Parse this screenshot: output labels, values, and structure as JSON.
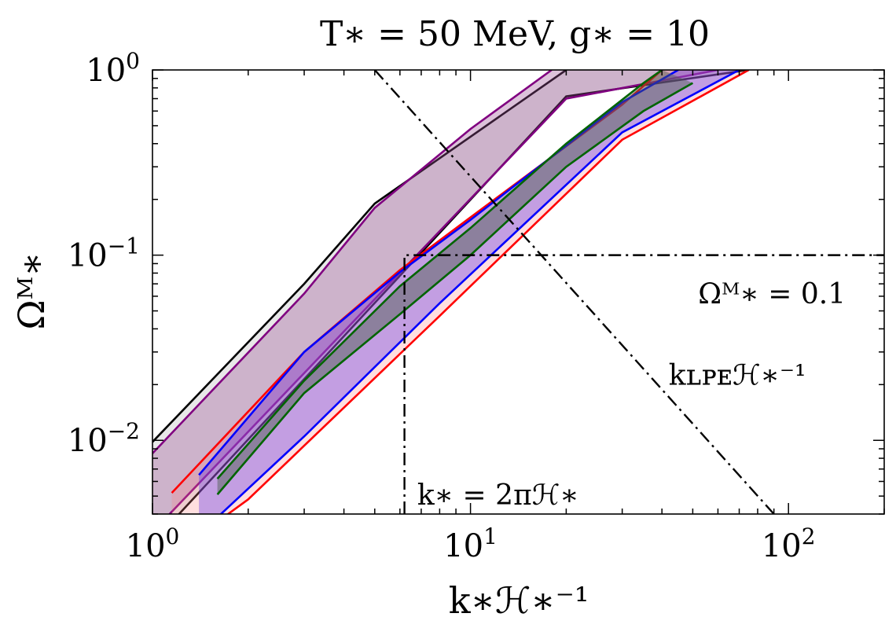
{
  "chart_data": {
    "type": "area",
    "title": "T∗ = 50 MeV, g∗ = 10",
    "xlabel": "k∗ℋ∗⁻¹",
    "ylabel": "Ωᴹ∗",
    "x_scale": "log",
    "y_scale": "log",
    "xlim": [
      1,
      200
    ],
    "ylim": [
      0.004,
      1
    ],
    "x_ticks": [
      {
        "value": 1,
        "base": "10",
        "exp": "0"
      },
      {
        "value": 10,
        "base": "10",
        "exp": "1"
      },
      {
        "value": 100,
        "base": "10",
        "exp": "2"
      }
    ],
    "y_ticks": [
      {
        "value": 0.01,
        "base": "10",
        "exp": "−2"
      },
      {
        "value": 0.1,
        "base": "10",
        "exp": "−1"
      },
      {
        "value": 1,
        "base": "10",
        "exp": "0"
      }
    ],
    "grid": false,
    "series": [
      {
        "color": "#000000",
        "fill": "#bdbdbd",
        "fill_opacity": 0.35,
        "upper": [
          [
            1,
            0.0098
          ],
          [
            3,
            0.07
          ],
          [
            5,
            0.19
          ],
          [
            20,
            1.0
          ]
        ],
        "lower": [
          [
            1,
            0.0028
          ],
          [
            20,
            0.72
          ],
          [
            75,
            1.0
          ]
        ]
      },
      {
        "color": "#800080",
        "fill": "#9b4f96",
        "fill_opacity": 0.35,
        "upper": [
          [
            1,
            0.0085
          ],
          [
            3,
            0.062
          ],
          [
            5,
            0.18
          ],
          [
            10,
            0.48
          ],
          [
            18,
            1.0
          ]
        ],
        "lower": [
          [
            1,
            0.0032
          ],
          [
            20,
            0.7
          ],
          [
            60,
            1.0
          ]
        ]
      },
      {
        "color": "#ff0000",
        "fill": "#ff8080",
        "fill_opacity": 0.25,
        "upper": [
          [
            1.15,
            0.0052
          ],
          [
            3,
            0.03
          ],
          [
            6,
            0.083
          ],
          [
            10,
            0.16
          ],
          [
            30,
            0.65
          ],
          [
            40,
            1.0
          ]
        ],
        "lower": [
          [
            1.15,
            0.0024
          ],
          [
            2,
            0.0048
          ],
          [
            8,
            0.047
          ],
          [
            30,
            0.42
          ],
          [
            75,
            1.0
          ]
        ]
      },
      {
        "color": "#0000ff",
        "fill": "#6a3ce6",
        "fill_opacity": 0.4,
        "upper": [
          [
            1.4,
            0.0065
          ],
          [
            3,
            0.03
          ],
          [
            6,
            0.081
          ],
          [
            10,
            0.155
          ],
          [
            30,
            0.67
          ],
          [
            45,
            1.0
          ]
        ],
        "lower": [
          [
            1.4,
            0.0031
          ],
          [
            3,
            0.0105
          ],
          [
            8,
            0.055
          ],
          [
            30,
            0.46
          ],
          [
            70,
            1.0
          ]
        ]
      },
      {
        "color": "#006400",
        "fill": "#4a5a4a",
        "fill_opacity": 0.45,
        "upper": [
          [
            1.6,
            0.0062
          ],
          [
            3,
            0.021
          ],
          [
            6,
            0.068
          ],
          [
            10,
            0.14
          ],
          [
            20,
            0.4
          ],
          [
            35,
            0.85
          ],
          [
            40,
            1.0
          ]
        ],
        "lower": [
          [
            1.6,
            0.0051
          ],
          [
            3,
            0.018
          ],
          [
            6,
            0.048
          ],
          [
            10,
            0.1
          ],
          [
            20,
            0.3
          ],
          [
            35,
            0.6
          ],
          [
            50,
            0.85
          ]
        ]
      }
    ],
    "reference_lines": [
      {
        "style": "dashdot",
        "points": [
          [
            6.2,
            0.004
          ],
          [
            6.2,
            0.1
          ],
          [
            200,
            0.1
          ]
        ]
      },
      {
        "style": "dashdot",
        "points": [
          [
            5,
            1.0
          ],
          [
            90,
            0.004
          ]
        ]
      }
    ],
    "annotations": [
      {
        "text": "Ωᴹ∗ = 0.1",
        "x": 52,
        "y": 0.055
      },
      {
        "text": "kʟᴘᴇℋ∗⁻¹",
        "x": 42,
        "y": 0.02
      },
      {
        "text": "k∗ = 2πℋ∗",
        "x": 6.8,
        "y": 0.0045
      }
    ]
  }
}
